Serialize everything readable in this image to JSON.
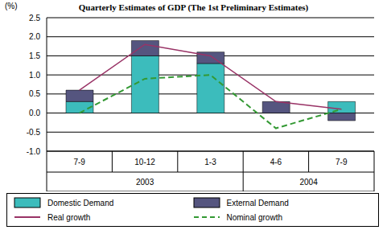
{
  "chart_data": {
    "type": "bar",
    "title": "Quarterly Estimates of GDP (The 1st Preliminary Estimates)",
    "ylabel": "(%)",
    "categories": [
      "7-9",
      "10-12",
      "1-3",
      "4-6",
      "7-9"
    ],
    "category_groups": [
      "2003",
      "2003",
      "2003",
      "2004",
      "2004"
    ],
    "stacked": true,
    "grid": true,
    "legend": "bottom",
    "ylim": [
      -1,
      2.5
    ],
    "yticks": [
      {
        "value": -1,
        "label": "-1.0"
      },
      -0.5,
      {
        "value": 0,
        "label": "0.0"
      },
      0.5,
      {
        "value": 1,
        "label": "1.0"
      },
      1.5,
      {
        "value": 2,
        "label": "2.0"
      },
      2.5
    ],
    "series": [
      {
        "name": "Domestic Demand",
        "type": "bar",
        "color": "#3cbcbc",
        "values": [
          0.3,
          1.5,
          1.3,
          0.0,
          0.3
        ]
      },
      {
        "name": "External Demand",
        "type": "bar",
        "color": "#55557f",
        "values": [
          0.3,
          0.4,
          0.3,
          0.3,
          -0.2
        ]
      },
      {
        "name": "Real growth",
        "type": "line",
        "line_style": "solid",
        "color": "#993366",
        "values": [
          0.6,
          1.8,
          1.5,
          0.3,
          0.1
        ]
      },
      {
        "name": "Nominal growth",
        "type": "line",
        "line_style": "dashed",
        "color": "#339933",
        "values": [
          0.0,
          0.9,
          1.0,
          -0.4,
          0.1
        ]
      }
    ]
  }
}
